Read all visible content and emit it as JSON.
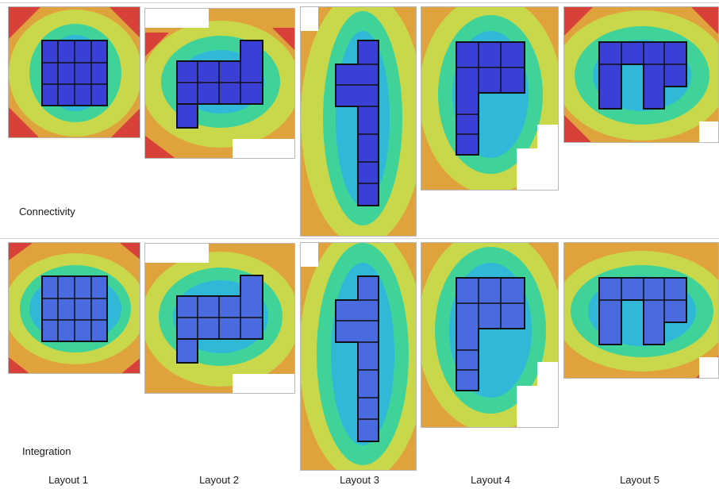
{
  "rows": [
    {
      "label": "Connectivity"
    },
    {
      "label": "Integration"
    }
  ],
  "columns": [
    {
      "label": "Layout 1"
    },
    {
      "label": "Layout 2"
    },
    {
      "label": "Layout 3"
    },
    {
      "label": "Layout 4"
    },
    {
      "label": "Layout 5"
    }
  ],
  "colors": {
    "low": "#3a3fd6",
    "low_mid": "#2fb8d8",
    "mid": "#3fd39a",
    "mid_high": "#c9d84a",
    "high": "#e0a23c",
    "max": "#d8403a",
    "wall": "#111111"
  }
}
